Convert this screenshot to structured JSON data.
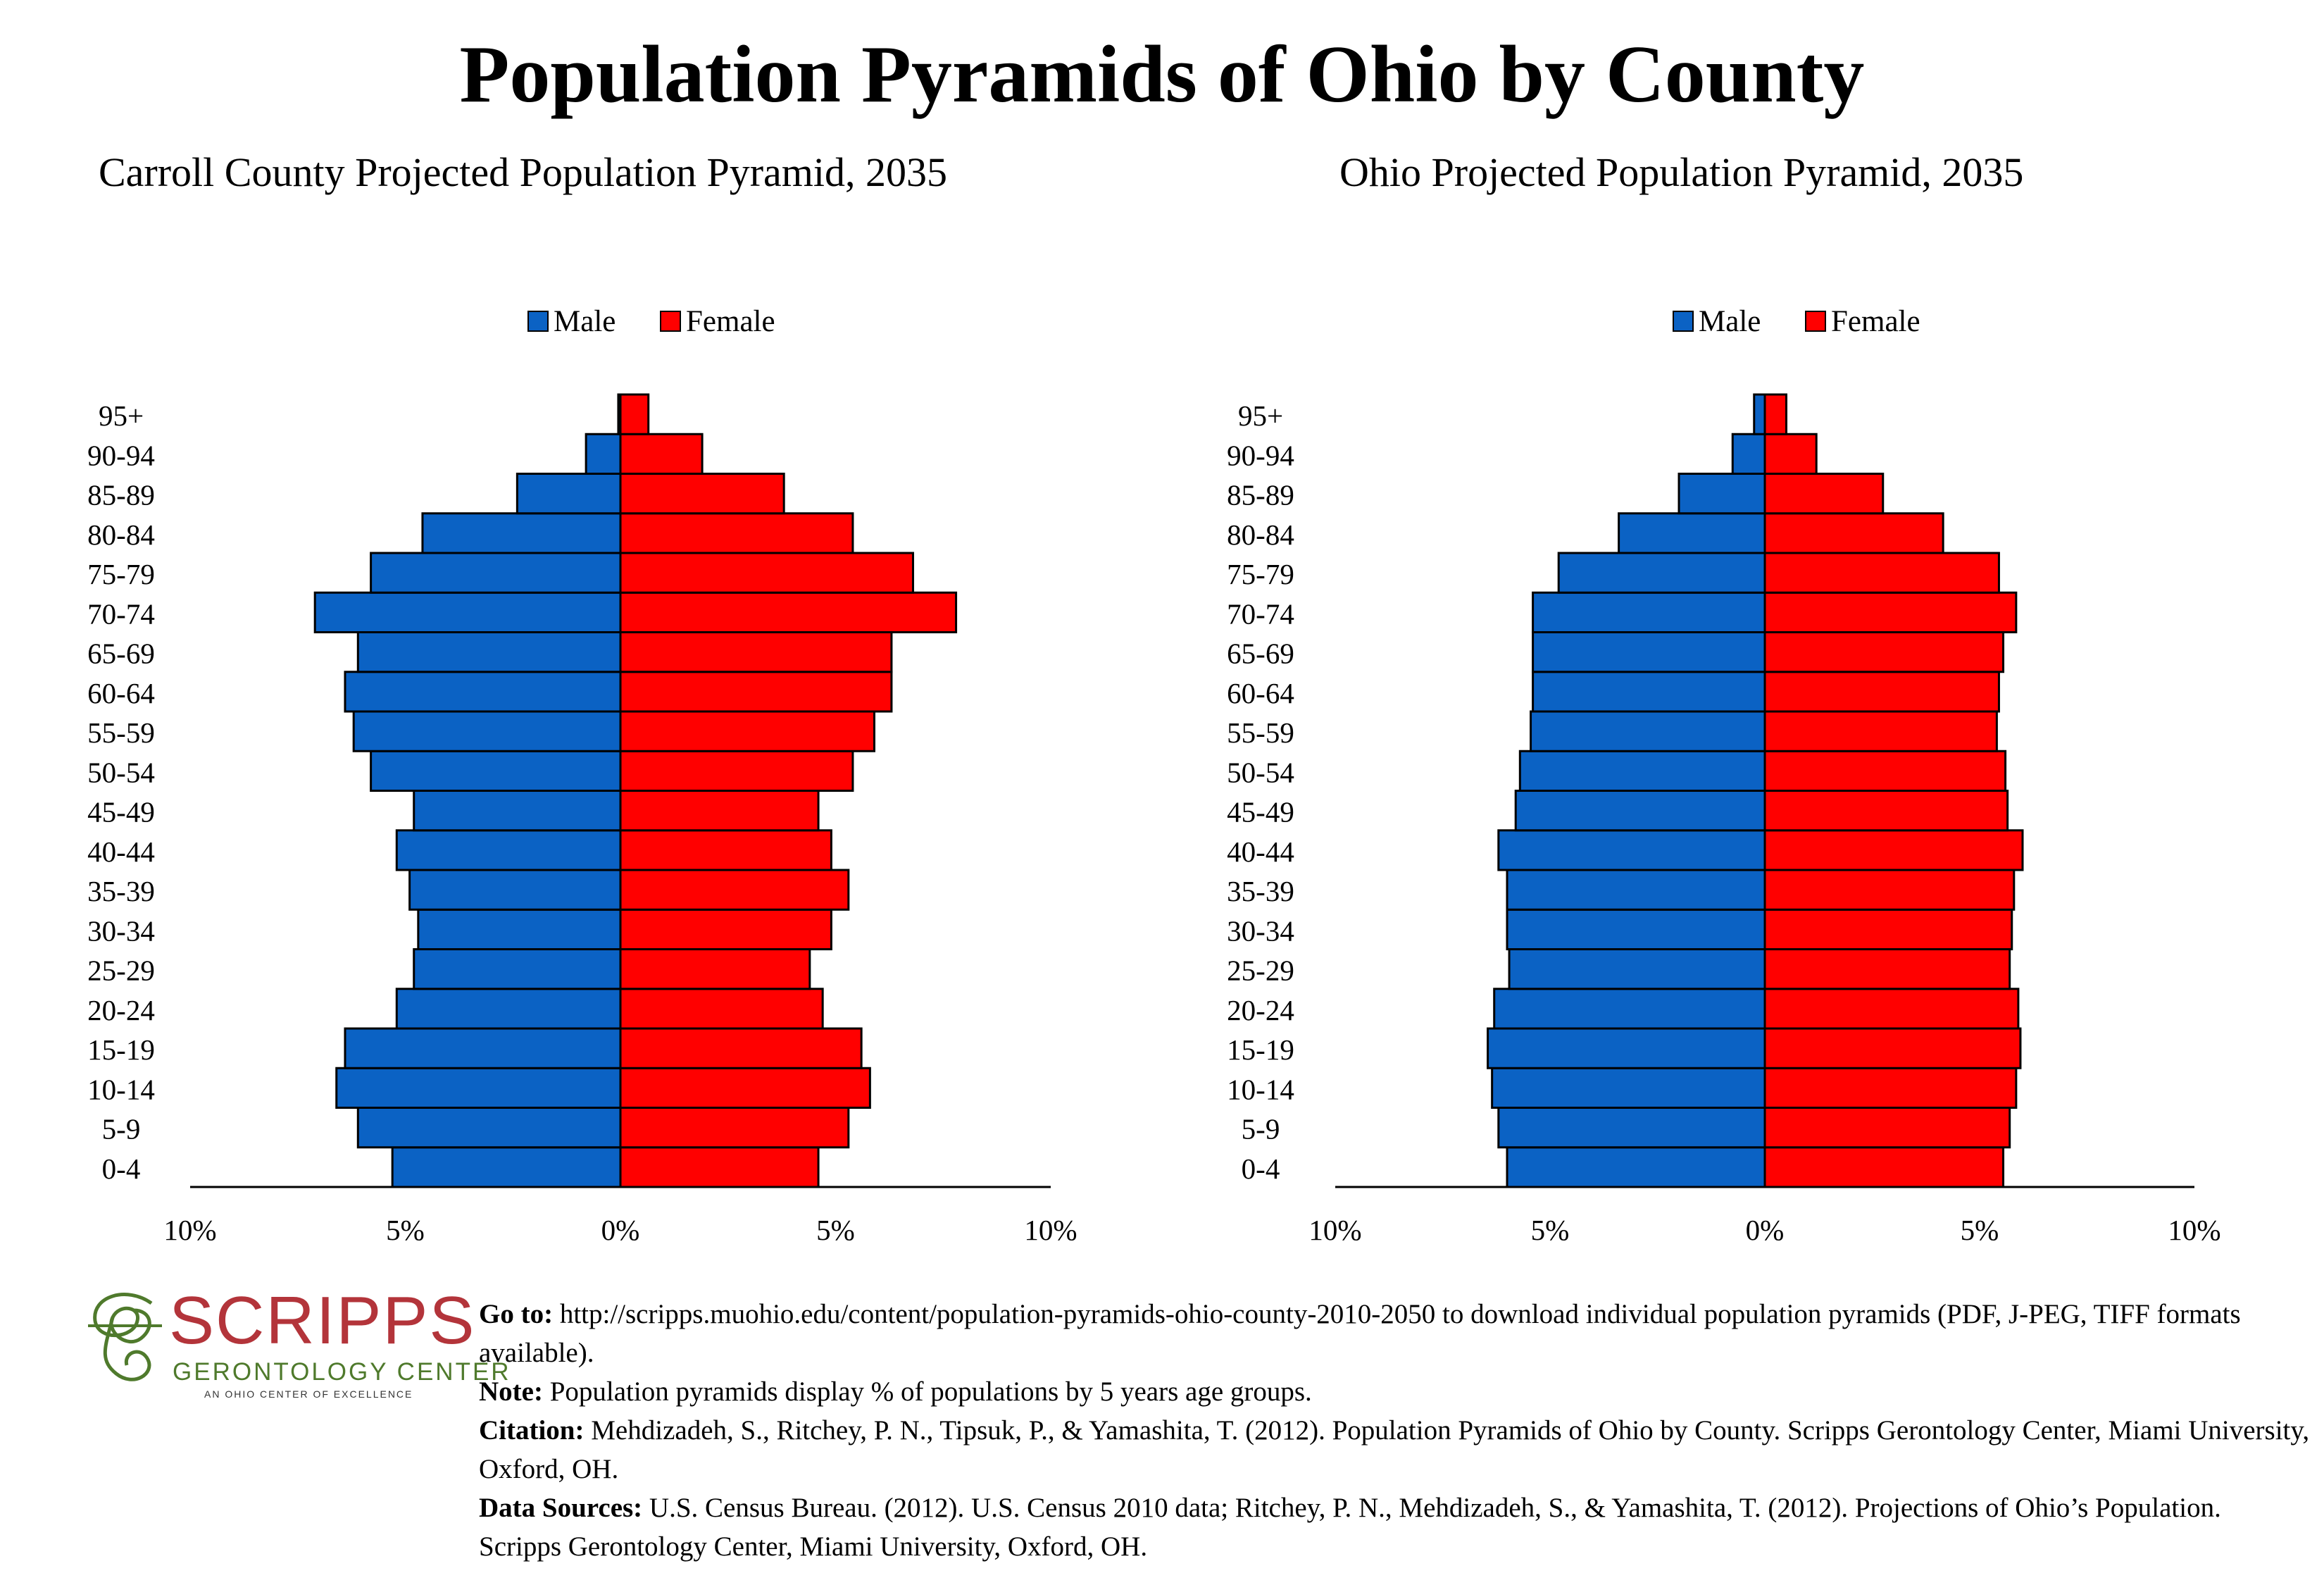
{
  "title": "Population Pyramids of Ohio by County",
  "legend": {
    "male": "Male",
    "female": "Female"
  },
  "colors": {
    "male": "#0B62C4",
    "female": "#FF0000",
    "outline": "#000000"
  },
  "chart_data": [
    {
      "type": "bar",
      "orientation": "horizontal-pyramid",
      "title": "Carroll County Projected Population Pyramid, 2035",
      "categories": [
        "0-4",
        "5-9",
        "10-14",
        "15-19",
        "20-24",
        "25-29",
        "30-34",
        "35-39",
        "40-44",
        "45-49",
        "50-54",
        "55-59",
        "60-64",
        "65-69",
        "70-74",
        "75-79",
        "80-84",
        "85-89",
        "90-94",
        "95+"
      ],
      "series": [
        {
          "name": "Male",
          "values": [
            5.3,
            6.1,
            6.6,
            6.4,
            5.2,
            4.8,
            4.7,
            4.9,
            5.2,
            4.8,
            5.8,
            6.2,
            6.4,
            6.1,
            7.1,
            5.8,
            4.6,
            2.4,
            0.8,
            0.05
          ]
        },
        {
          "name": "Female",
          "values": [
            4.6,
            5.3,
            5.8,
            5.6,
            4.7,
            4.4,
            4.9,
            5.3,
            4.9,
            4.6,
            5.4,
            5.9,
            6.3,
            6.3,
            7.8,
            6.8,
            5.4,
            3.8,
            1.9,
            0.65
          ]
        }
      ],
      "xlim": [
        -10,
        10
      ],
      "ticks": [
        "10%",
        "5%",
        "0%",
        "5%",
        "10%"
      ],
      "legend_position": "top-center",
      "grid": false
    },
    {
      "type": "bar",
      "orientation": "horizontal-pyramid",
      "title": "Ohio Projected Population Pyramid, 2035",
      "categories": [
        "0-4",
        "5-9",
        "10-14",
        "15-19",
        "20-24",
        "25-29",
        "30-34",
        "35-39",
        "40-44",
        "45-49",
        "50-54",
        "55-59",
        "60-64",
        "65-69",
        "70-74",
        "75-79",
        "80-84",
        "85-89",
        "90-94",
        "95+"
      ],
      "series": [
        {
          "name": "Male",
          "values": [
            6.0,
            6.2,
            6.35,
            6.45,
            6.3,
            5.95,
            6.0,
            6.0,
            6.2,
            5.8,
            5.7,
            5.45,
            5.4,
            5.4,
            5.4,
            4.8,
            3.4,
            2.0,
            0.75,
            0.25
          ]
        },
        {
          "name": "Female",
          "values": [
            5.55,
            5.7,
            5.85,
            5.95,
            5.9,
            5.7,
            5.75,
            5.8,
            6.0,
            5.65,
            5.6,
            5.4,
            5.45,
            5.55,
            5.85,
            5.45,
            4.15,
            2.75,
            1.2,
            0.5
          ]
        }
      ],
      "xlim": [
        -10,
        10
      ],
      "ticks": [
        "10%",
        "5%",
        "0%",
        "5%",
        "10%"
      ],
      "legend_position": "top-center",
      "grid": false
    }
  ],
  "logo": {
    "name": "SCRIPPS",
    "subtitle": "GERONTOLOGY CENTER",
    "tagline": "AN OHIO CENTER OF EXCELLENCE"
  },
  "notes": {
    "goto_label": "Go to:",
    "goto_text": " http://scripps.muohio.edu/content/population-pyramids-ohio-county-2010-2050 to download individual population pyramids (PDF, J-PEG, TIFF formats available).",
    "note_label": "Note:",
    "note_text": " Population pyramids display % of populations by 5 years age groups.",
    "citation_label": "Citation:",
    "citation_text": " Mehdizadeh, S., Ritchey, P. N., Tipsuk, P., & Yamashita, T. (2012). Population Pyramids of Ohio by County. Scripps Gerontology Center, Miami University, Oxford, OH.",
    "sources_label": "Data Sources:",
    "sources_text": " U.S. Census Bureau. (2012). U.S. Census 2010 data; Ritchey, P. N., Mehdizadeh, S., & Yamashita, T. (2012). Projections of Ohio’s Population. Scripps Gerontology Center, Miami University, Oxford, OH."
  }
}
